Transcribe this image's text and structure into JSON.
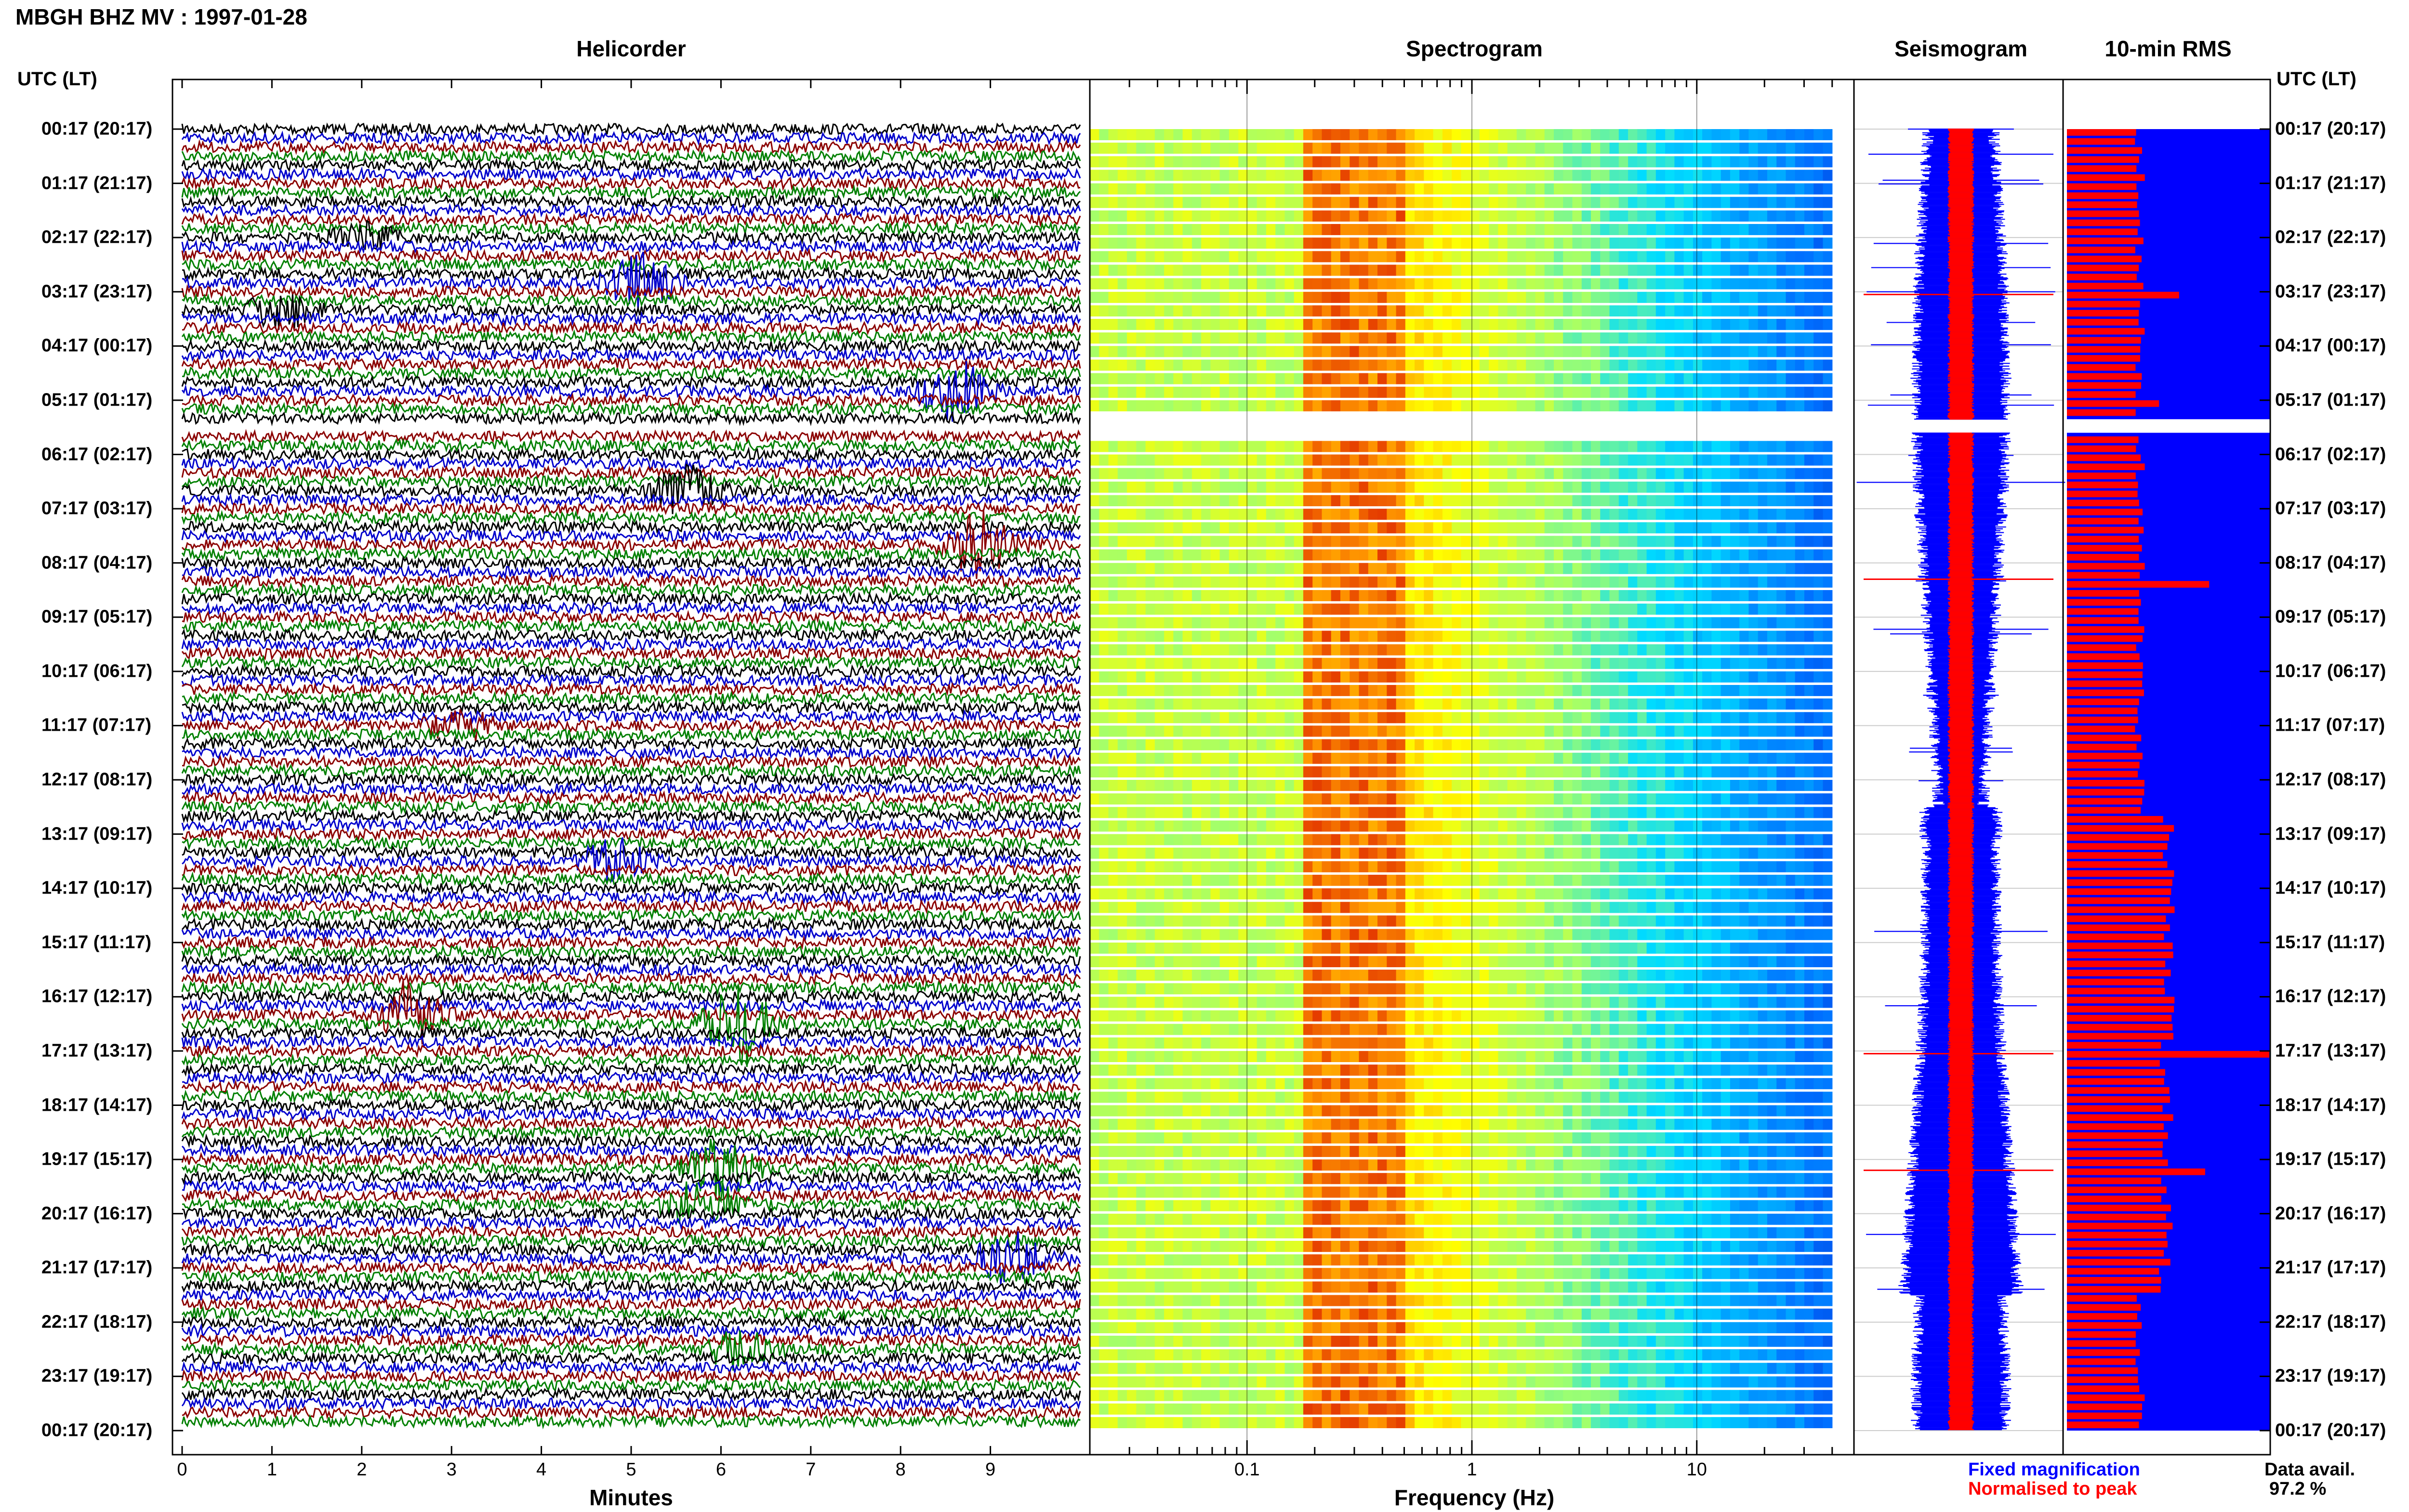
{
  "header": {
    "title": "MBGH BHZ MV : 1997-01-28"
  },
  "panels": {
    "helicorder": "Helicorder",
    "spectrogram": "Spectrogram",
    "seismogram": "Seismogram",
    "rms": "10-min RMS"
  },
  "axis_header": {
    "left": "UTC (LT)",
    "right": "UTC (LT)"
  },
  "time_labels": [
    "00:17 (20:17)",
    "01:17 (21:17)",
    "02:17 (22:17)",
    "03:17 (23:17)",
    "04:17 (00:17)",
    "05:17 (01:17)",
    "06:17 (02:17)",
    "07:17 (03:17)",
    "08:17 (04:17)",
    "09:17 (05:17)",
    "10:17 (06:17)",
    "11:17 (07:17)",
    "12:17 (08:17)",
    "13:17 (09:17)",
    "14:17 (10:17)",
    "15:17 (11:17)",
    "16:17 (12:17)",
    "17:17 (13:17)",
    "18:17 (14:17)",
    "19:17 (15:17)",
    "20:17 (16:17)",
    "21:17 (17:17)",
    "22:17 (18:17)",
    "23:17 (19:17)",
    "00:17 (20:17)"
  ],
  "legend": {
    "fixed": "Fixed magnification",
    "normalised": "Normalised to peak",
    "avail_label": "Data avail.",
    "avail_value": "97.2 %"
  },
  "colors": {
    "trace_cycle": [
      "#000000",
      "#0000cc",
      "#8b0000",
      "#008000"
    ],
    "fixed": "#0000ff",
    "normalised": "#ff0000"
  },
  "chart_data": [
    {
      "type": "line",
      "name": "helicorder",
      "xlabel": "Minutes",
      "xlim": [
        0,
        10
      ],
      "xticks": [
        "0",
        "1",
        "2",
        "3",
        "4",
        "5",
        "6",
        "7",
        "8",
        "9"
      ],
      "ylim_hours": [
        0,
        24
      ],
      "gap_hours": [
        5.35,
        5.6
      ],
      "events": [
        {
          "hour": 3.3,
          "minute": 0.9,
          "amp": 0.6
        },
        {
          "hour": 2.8,
          "minute": 4.9,
          "amp": 0.9
        },
        {
          "hour": 2.0,
          "minute": 1.8,
          "amp": 0.5
        },
        {
          "hour": 4.9,
          "minute": 8.4,
          "amp": 1.0
        },
        {
          "hour": 6.6,
          "minute": 5.4,
          "amp": 0.8
        },
        {
          "hour": 7.6,
          "minute": 8.7,
          "amp": 1.2
        },
        {
          "hour": 11.0,
          "minute": 2.9,
          "amp": 0.5
        },
        {
          "hour": 13.5,
          "minute": 4.6,
          "amp": 0.7
        },
        {
          "hour": 16.3,
          "minute": 2.3,
          "amp": 1.1
        },
        {
          "hour": 16.5,
          "minute": 6.0,
          "amp": 1.4
        },
        {
          "hour": 19.1,
          "minute": 5.8,
          "amp": 1.0
        },
        {
          "hour": 19.9,
          "minute": 5.6,
          "amp": 0.9
        },
        {
          "hour": 20.9,
          "minute": 9.0,
          "amp": 0.9
        },
        {
          "hour": 22.5,
          "minute": 6.0,
          "amp": 0.6
        }
      ]
    },
    {
      "type": "heatmap",
      "name": "spectrogram",
      "xlabel": "Frequency (Hz)",
      "xscale": "log",
      "xlim": [
        0.02,
        50
      ],
      "xticks": [
        "0.1",
        "1",
        "10"
      ],
      "ylim_hours": [
        0,
        24
      ],
      "gap_hours": [
        5.35,
        5.6
      ],
      "peak_band_hz": [
        0.2,
        0.4
      ]
    },
    {
      "type": "line",
      "name": "seismogram",
      "series": [
        {
          "name": "Fixed magnification",
          "color": "#0000ff"
        },
        {
          "name": "Normalised to peak",
          "color": "#ff0000"
        }
      ],
      "gap_hours": [
        5.35,
        5.6
      ]
    },
    {
      "type": "bar",
      "name": "10-min RMS",
      "orientation": "horizontal",
      "ylim_hours": [
        0,
        24
      ],
      "gap_hours": [
        5.35,
        5.6
      ],
      "peaks": [
        {
          "hour": 3.05,
          "value": 0.55
        },
        {
          "hour": 5.0,
          "value": 0.45
        },
        {
          "hour": 8.3,
          "value": 0.7
        },
        {
          "hour": 16.95,
          "value": 0.63
        },
        {
          "hour": 17.05,
          "value": 1.0
        },
        {
          "hour": 19.2,
          "value": 0.68
        },
        {
          "hour": 21.0,
          "value": 0.45
        }
      ],
      "base_value": 0.33,
      "mid_day_value": 0.45
    }
  ]
}
